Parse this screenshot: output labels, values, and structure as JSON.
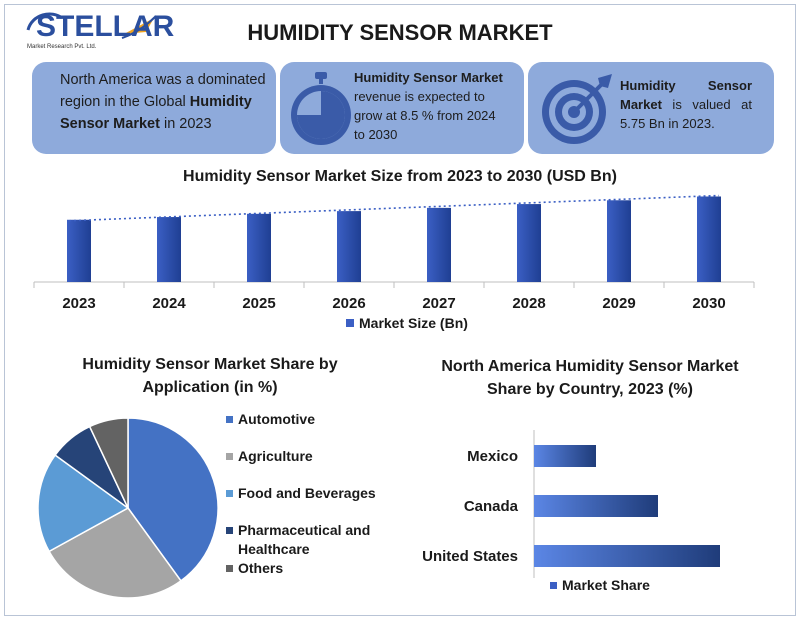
{
  "logo": {
    "name": "STELLAR",
    "subtitle": "Market Research Pvt. Ltd."
  },
  "title": "HUMIDITY SENSOR MARKET",
  "cards": [
    {
      "pre": "North America was a dominated region in the Global ",
      "bold": "Humidity Sensor Market",
      "post": " in 2023"
    },
    {
      "pre": "",
      "bold": "Humidity Sensor Market",
      "post": " revenue is expected to grow at 8.5 % from 2024 to 2030",
      "icon": "stopwatch-icon"
    },
    {
      "pre": "",
      "bold": "Humidity Sensor Market",
      "post": " is valued at 5.75 Bn in 2023.",
      "icon": "target-icon"
    }
  ],
  "colors": {
    "card_bg": "#8eaadb",
    "bar": "#3b5fc4",
    "bar_dark": "#1f3f93",
    "icon": "#3a5ba8"
  },
  "chart_data": [
    {
      "type": "bar",
      "title": "Humidity Sensor Market Size from 2023 to 2030 (USD Bn)",
      "categories": [
        "2023",
        "2024",
        "2025",
        "2026",
        "2027",
        "2028",
        "2029",
        "2030"
      ],
      "series": [
        {
          "name": "Market Size (Bn)",
          "values": [
            5.75,
            6.0,
            6.3,
            6.55,
            6.85,
            7.2,
            7.55,
            7.9
          ]
        }
      ],
      "trendline": "dotted",
      "ylim": [
        0,
        8.5
      ],
      "legend": "bottom",
      "grid": false
    },
    {
      "type": "pie",
      "title": "Humidity Sensor Market Share by Application (in %)",
      "labels": [
        "Automotive",
        "Agriculture",
        "Food and Beverages",
        "Pharmaceutical and Healthcare",
        "Others"
      ],
      "values": [
        40,
        27,
        18,
        8,
        7
      ],
      "colors": [
        "#4472c4",
        "#a5a5a5",
        "#5b9bd5",
        "#264478",
        "#636363"
      ],
      "legend": "right"
    },
    {
      "type": "bar",
      "orientation": "horizontal",
      "title": "North America Humidity Sensor Market Share by Country, 2023 (%)",
      "categories": [
        "Mexico",
        "Canada",
        "United States"
      ],
      "series": [
        {
          "name": "Market Share",
          "values": [
            12,
            24,
            36
          ]
        }
      ],
      "legend": "bottom"
    }
  ]
}
